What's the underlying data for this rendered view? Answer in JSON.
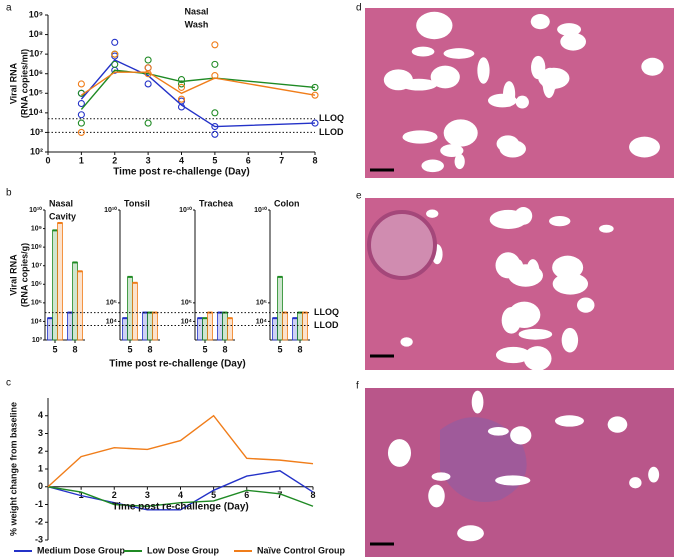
{
  "chart_data": [
    {
      "panel": "a",
      "type": "line",
      "title": [
        "Nasal",
        "Wash"
      ],
      "ylabel": [
        "Viral RNA",
        "(RNA copies/ml)"
      ],
      "xlabel": "Time post re-challenge (Day)",
      "x": [
        1,
        2,
        3,
        4,
        5,
        8
      ],
      "xlim": [
        0,
        8
      ],
      "xticks": [
        0,
        1,
        2,
        3,
        4,
        5,
        6,
        7,
        8
      ],
      "log_y": true,
      "ylim": [
        100,
        1000000000
      ],
      "yticks": [
        {
          "value": 100,
          "label": "10²"
        },
        {
          "value": 1000,
          "label": "10³"
        },
        {
          "value": 10000,
          "label": "10⁴"
        },
        {
          "value": 100000,
          "label": "10⁵"
        },
        {
          "value": 1000000,
          "label": "10⁶"
        },
        {
          "value": 10000000,
          "label": "10⁷"
        },
        {
          "value": 100000000,
          "label": "10⁸"
        },
        {
          "value": 1000000000,
          "label": "10⁹"
        }
      ],
      "ref_lines": [
        {
          "label": "LLOQ",
          "value": 5000
        },
        {
          "label": "LLOD",
          "value": 1000
        }
      ],
      "series": [
        {
          "color": "#2432c8",
          "values": [
            50000,
            5000000,
            800000,
            25000,
            2000,
            3000
          ],
          "points": {
            "x": [
              1,
              1,
              1,
              2,
              2,
              2,
              3,
              3,
              4,
              4,
              5,
              5,
              8
            ],
            "y": [
              100000,
              30000,
              8000,
              40000000,
              8000000,
              1500000,
              2000000,
              300000,
              40000,
              20000,
              2000,
              800,
              3000
            ]
          }
        },
        {
          "color": "#1f8a24",
          "values": [
            15000,
            1500000,
            1000000,
            400000,
            600000,
            200000
          ],
          "points": {
            "x": [
              1,
              1,
              2,
              2,
              3,
              3,
              4,
              4,
              5,
              5,
              8
            ],
            "y": [
              100000,
              3000,
              10000000,
              3000000,
              5000000,
              3000,
              500000,
              300000,
              3000000,
              10000,
              200000
            ]
          }
        },
        {
          "color": "#f07d1a",
          "values": [
            80000,
            1200000,
            1200000,
            100000,
            600000,
            80000
          ],
          "points": {
            "x": [
              1,
              1,
              2,
              3,
              3,
              4,
              4,
              5,
              5,
              8
            ],
            "y": [
              300000,
              1000,
              10000000,
              2000000,
              1000000,
              200000,
              50000,
              30000000,
              800000,
              80000
            ]
          }
        }
      ]
    },
    {
      "panel": "b",
      "type": "bar",
      "ylabel": [
        "Viral RNA",
        "(RNA copies/g)"
      ],
      "xlabel": "Time post re-challenge (Day)",
      "log_y": true,
      "ylim": [
        1000,
        10000000000
      ],
      "ref_lines": [
        {
          "label": "LLOQ",
          "value": 30000
        },
        {
          "label": "LLOD",
          "value": 6000
        }
      ],
      "subplots": [
        {
          "title": [
            "Nasal",
            "Cavity"
          ],
          "categories": [
            "5",
            "8"
          ],
          "yticks": [
            {
              "value": 1000,
              "label": "10³"
            },
            {
              "value": 10000,
              "label": "10⁴"
            },
            {
              "value": 100000,
              "label": "10⁵"
            },
            {
              "value": 1000000,
              "label": "10⁶"
            },
            {
              "value": 10000000,
              "label": "10⁷"
            },
            {
              "value": 100000000,
              "label": "10⁸"
            },
            {
              "value": 1000000000,
              "label": "10⁹"
            },
            {
              "value": 10000000000,
              "label": "10¹⁰"
            }
          ],
          "series": [
            {
              "color": "#2432c8",
              "values": [
                15000,
                30000
              ]
            },
            {
              "color": "#1f8a24",
              "values": [
                800000000,
                15000000
              ]
            },
            {
              "color": "#f07d1a",
              "values": [
                2000000000,
                5000000
              ]
            }
          ]
        },
        {
          "title": [
            "Tonsil"
          ],
          "categories": [
            "5",
            "8"
          ],
          "yticks": [
            {
              "value": 10000,
              "label": "10⁴"
            },
            {
              "value": 100000,
              "label": "10⁵"
            },
            {
              "value": 10000000000,
              "label": "10¹⁰"
            }
          ],
          "series": [
            {
              "color": "#2432c8",
              "values": [
                15000,
                30000
              ]
            },
            {
              "color": "#1f8a24",
              "values": [
                2500000,
                30000
              ]
            },
            {
              "color": "#f07d1a",
              "values": [
                1200000,
                30000
              ]
            }
          ]
        },
        {
          "title": [
            "Trachea"
          ],
          "categories": [
            "5",
            "8"
          ],
          "yticks": [
            {
              "value": 10000,
              "label": "10⁴"
            },
            {
              "value": 100000,
              "label": "10⁵"
            },
            {
              "value": 10000000000,
              "label": "10¹⁰"
            }
          ],
          "series": [
            {
              "color": "#2432c8",
              "values": [
                15000,
                30000
              ]
            },
            {
              "color": "#1f8a24",
              "values": [
                15000,
                30000
              ]
            },
            {
              "color": "#f07d1a",
              "values": [
                30000,
                15000
              ]
            }
          ]
        },
        {
          "title": [
            "Colon"
          ],
          "categories": [
            "5",
            "8"
          ],
          "yticks": [
            {
              "value": 10000,
              "label": "10⁴"
            },
            {
              "value": 100000,
              "label": "10⁵"
            },
            {
              "value": 10000000000,
              "label": "10¹⁰"
            }
          ],
          "series": [
            {
              "color": "#2432c8",
              "values": [
                15000,
                15000
              ]
            },
            {
              "color": "#1f8a24",
              "values": [
                2500000,
                30000
              ]
            },
            {
              "color": "#f07d1a",
              "values": [
                30000,
                30000
              ]
            }
          ]
        }
      ]
    },
    {
      "panel": "c",
      "type": "line",
      "ylabel": [
        "% weight change from baseline"
      ],
      "xlabel": "Time post re-challenge (Day)",
      "x": [
        0,
        1,
        2,
        3,
        4,
        5,
        6,
        7,
        8
      ],
      "xlim": [
        0,
        8
      ],
      "xticks": [
        1,
        2,
        3,
        4,
        5,
        6,
        7,
        8
      ],
      "log_y": false,
      "ylim": [
        -3,
        5
      ],
      "yticks": [
        -3,
        -2,
        -1,
        0,
        1,
        2,
        3,
        4
      ],
      "legend": "bottom",
      "series": [
        {
          "name": "Medium Dose Group",
          "color": "#2432c8",
          "values": [
            0,
            -0.5,
            -0.9,
            -1.3,
            -1.3,
            -0.2,
            0.6,
            0.9,
            -0.3
          ]
        },
        {
          "name": "Low Dose Group",
          "color": "#1f8a24",
          "values": [
            0,
            -0.3,
            -1.0,
            -1.1,
            -0.9,
            -0.8,
            -0.2,
            -0.4,
            -1.1
          ]
        },
        {
          "name": "Naïve Control Group",
          "color": "#f07d1a",
          "values": [
            0,
            1.7,
            2.2,
            2.1,
            2.6,
            4.0,
            1.6,
            1.5,
            1.3
          ]
        }
      ]
    }
  ],
  "images": [
    {
      "panel": "d"
    },
    {
      "panel": "e"
    },
    {
      "panel": "f"
    }
  ]
}
